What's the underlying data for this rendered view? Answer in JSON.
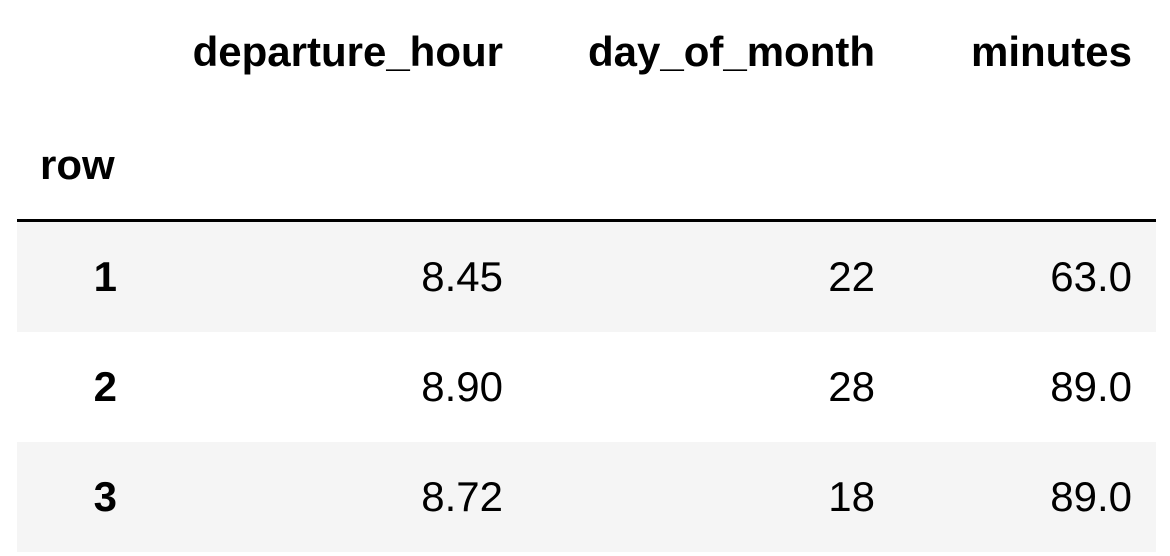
{
  "table": {
    "index_name": "row",
    "columns": [
      "departure_hour",
      "day_of_month",
      "minutes"
    ],
    "rows": [
      {
        "index": "1",
        "values": [
          "8.45",
          "22",
          "63.0"
        ]
      },
      {
        "index": "2",
        "values": [
          "8.90",
          "28",
          "89.0"
        ]
      },
      {
        "index": "3",
        "values": [
          "8.72",
          "18",
          "89.0"
        ]
      }
    ]
  },
  "colors": {
    "striped_row_background": "#f5f5f5",
    "header_rule": "#000000"
  }
}
